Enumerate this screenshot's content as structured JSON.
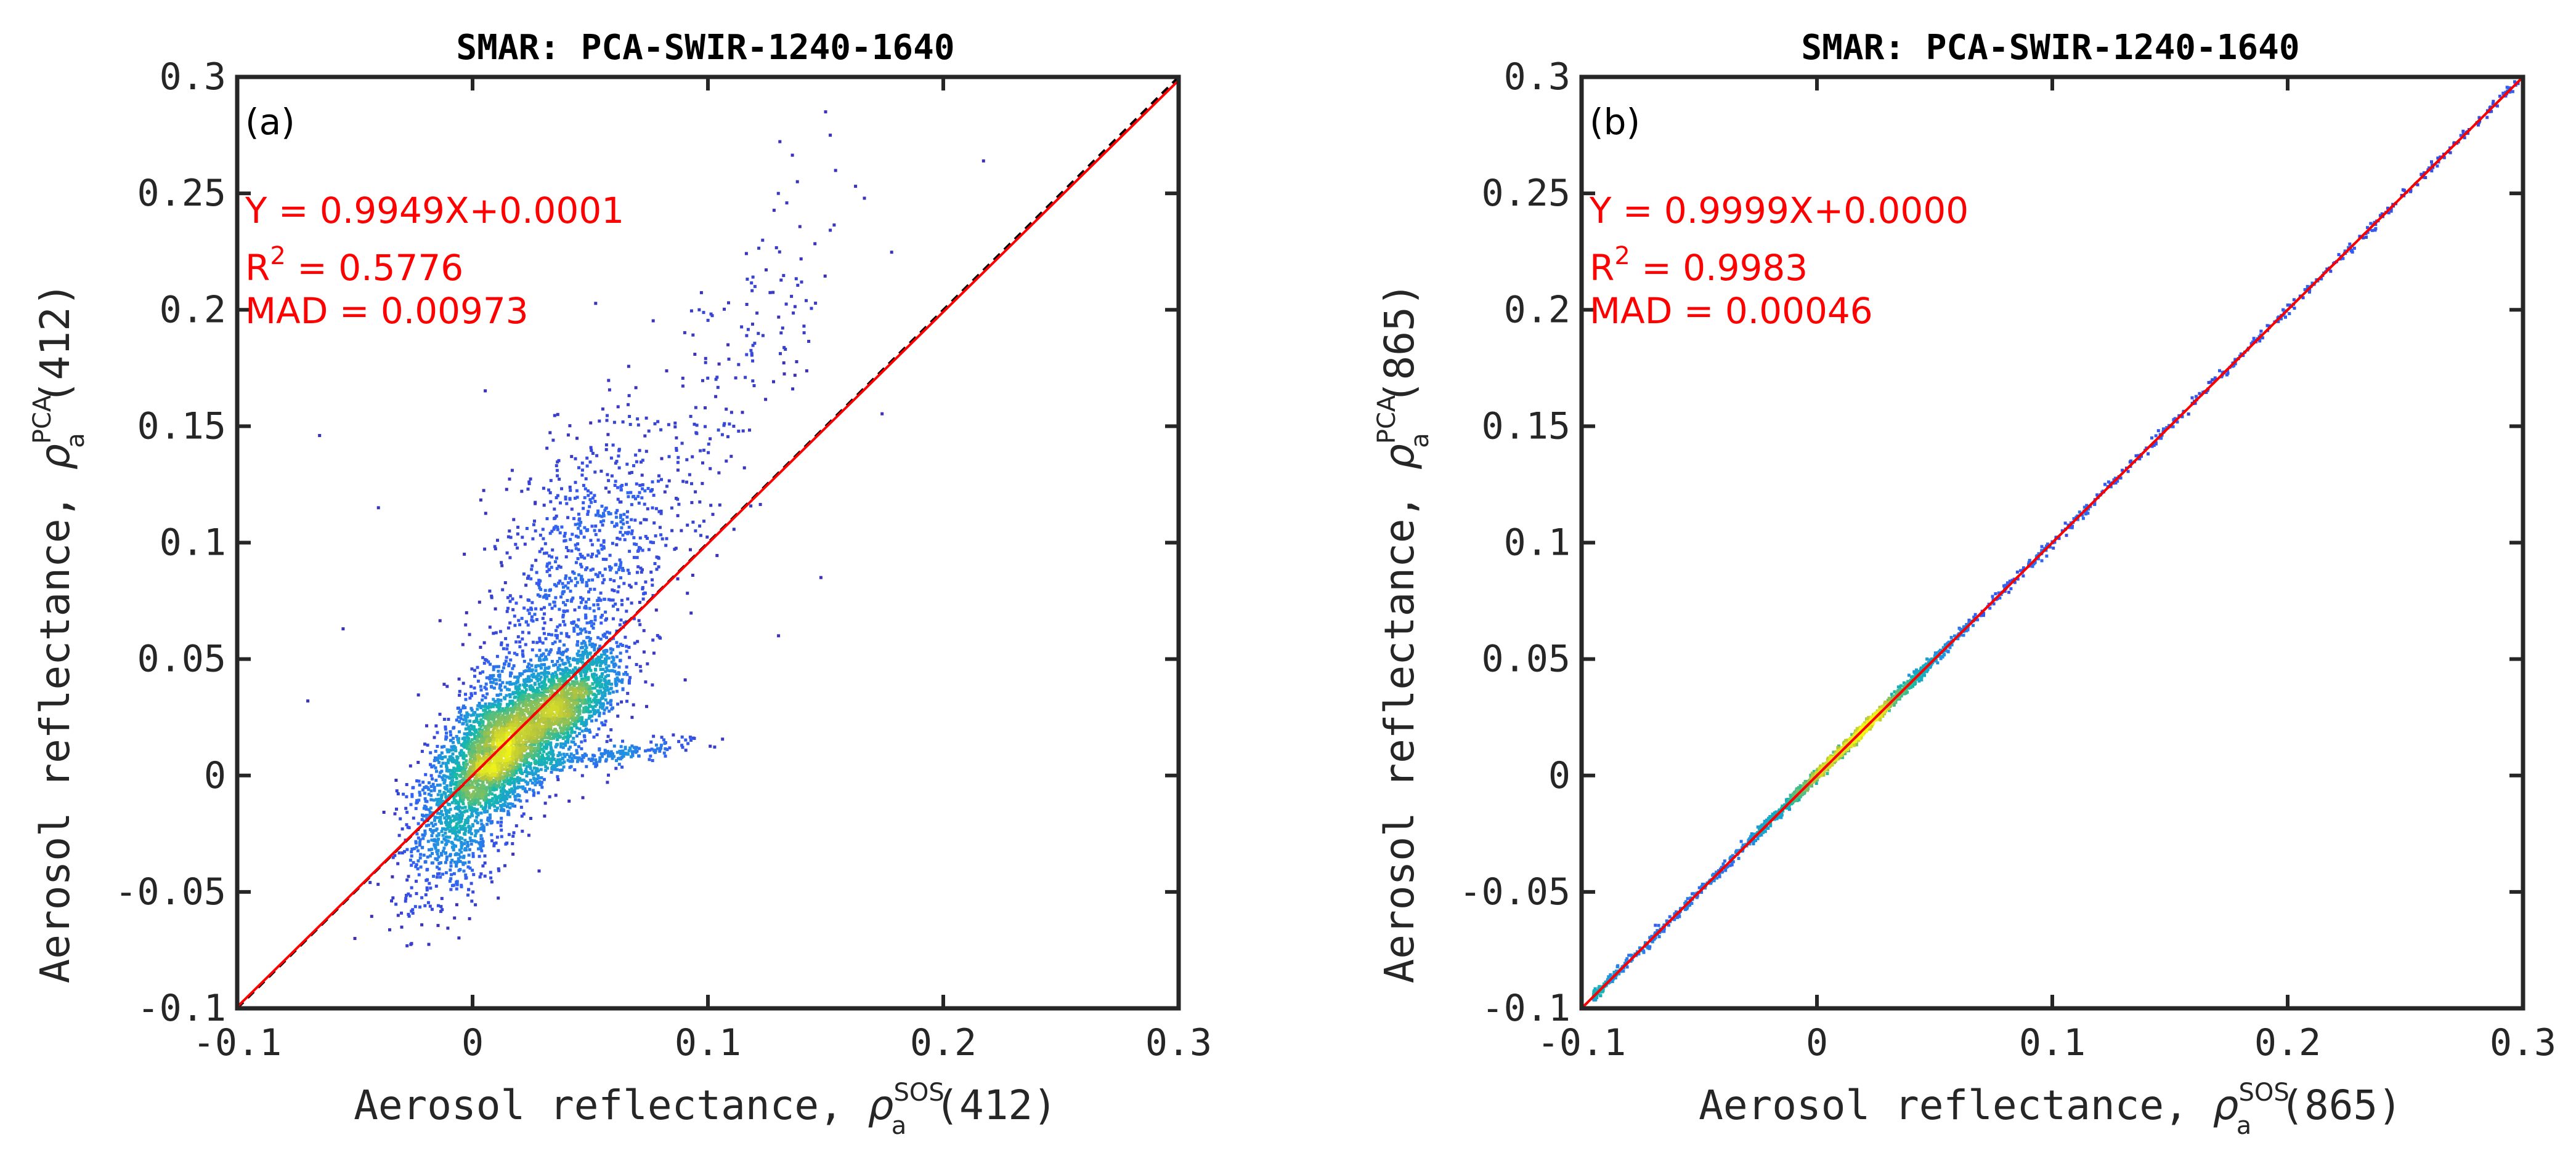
{
  "colors": {
    "fit_line": "#ff0000",
    "one_to_one": "#000000",
    "annotation": "#ff0000",
    "axes": "#262626"
  },
  "chart_data": [
    {
      "type": "scatter",
      "density_colored": true,
      "panel_label": "(a)",
      "title": "SMAR: PCA-SWIR-1240-1640",
      "xlabel": {
        "prefix": "Aerosol reflectance, ",
        "symbol": "ρ",
        "sub": "a",
        "sup": "SOS",
        "suffix": "(412)"
      },
      "ylabel": {
        "prefix": "Aerosol reflectance, ",
        "symbol": "ρ",
        "sub": "a",
        "sup": "PCA",
        "suffix": "(412)"
      },
      "xlim": [
        -0.1,
        0.3
      ],
      "ylim": [
        -0.1,
        0.3
      ],
      "xticks": [
        -0.1,
        0,
        0.1,
        0.2,
        0.3
      ],
      "xtick_labels": [
        "-0.1",
        "0",
        "0.1",
        "0.2",
        "0.3"
      ],
      "yticks": [
        -0.1,
        -0.05,
        0,
        0.05,
        0.1,
        0.15,
        0.2,
        0.25,
        0.3
      ],
      "ytick_labels": [
        "-0.1",
        "-0.05",
        "0",
        "0.05",
        "0.1",
        "0.15",
        "0.2",
        "0.25",
        "0.3"
      ],
      "fit": {
        "slope": 0.9949,
        "intercept": 0.0001,
        "equation": "Y = 0.9949X+0.0001",
        "r2_label": "R",
        "r2_exp": "2",
        "r2_value": " = 0.5776",
        "mad": "MAD = 0.00973"
      },
      "reference_line": "1:1",
      "clusters": [
        {
          "name": "core",
          "x": 0.01,
          "y": 0.01,
          "sx": 0.014,
          "sy": 0.018,
          "rho": 0.55,
          "count": 2600
        },
        {
          "name": "core-right",
          "x": 0.04,
          "y": 0.03,
          "sx": 0.012,
          "sy": 0.012,
          "rho": 0.6,
          "count": 1200
        },
        {
          "name": "upper-plume",
          "x": 0.045,
          "y": 0.085,
          "sx": 0.02,
          "sy": 0.035,
          "rho": 0.45,
          "count": 900
        },
        {
          "name": "negative-tail",
          "x": -0.01,
          "y": -0.03,
          "sx": 0.012,
          "sy": 0.016,
          "rho": 0.3,
          "count": 380
        },
        {
          "name": "high-branch",
          "x": 0.11,
          "y": 0.17,
          "sx": 0.025,
          "sy": 0.04,
          "rho": 0.7,
          "count": 170
        },
        {
          "name": "low-streak",
          "x": 0.055,
          "y": 0.008,
          "sx": 0.02,
          "sy": 0.004,
          "rho": 0.8,
          "count": 200
        }
      ],
      "outliers": [
        [
          -0.065,
          0.146
        ],
        [
          -0.04,
          0.115
        ],
        [
          -0.055,
          0.063
        ],
        [
          -0.07,
          0.032
        ],
        [
          -0.05,
          -0.07
        ],
        [
          0.148,
          0.085
        ],
        [
          0.15,
          0.285
        ],
        [
          0.152,
          0.275
        ],
        [
          0.138,
          0.255
        ],
        [
          0.12,
          0.21
        ],
        [
          0.13,
          0.06
        ]
      ]
    },
    {
      "type": "scatter",
      "density_colored": true,
      "panel_label": "(b)",
      "title": "SMAR: PCA-SWIR-1240-1640",
      "xlabel": {
        "prefix": "Aerosol reflectance, ",
        "symbol": "ρ",
        "sub": "a",
        "sup": "SOS",
        "suffix": "(865)"
      },
      "ylabel": {
        "prefix": "Aerosol reflectance, ",
        "symbol": "ρ",
        "sub": "a",
        "sup": "PCA",
        "suffix": "(865)"
      },
      "xlim": [
        -0.1,
        0.3
      ],
      "ylim": [
        -0.1,
        0.3
      ],
      "xticks": [
        -0.1,
        0,
        0.1,
        0.2,
        0.3
      ],
      "xtick_labels": [
        "-0.1",
        "0",
        "0.1",
        "0.2",
        "0.3"
      ],
      "yticks": [
        -0.1,
        -0.05,
        0,
        0.05,
        0.1,
        0.15,
        0.2,
        0.25,
        0.3
      ],
      "ytick_labels": [
        "-0.1",
        "-0.05",
        "0",
        "0.05",
        "0.1",
        "0.15",
        "0.2",
        "0.25",
        "0.3"
      ],
      "fit": {
        "slope": 0.9999,
        "intercept": 0.0,
        "equation": "Y = 0.9999X+0.0000",
        "r2_label": "R",
        "r2_exp": "2",
        "r2_value": " = 0.9983",
        "mad": "MAD = 0.00046"
      },
      "reference_line": "1:1",
      "diagonal_points": {
        "x_min": -0.095,
        "x_max": 0.3,
        "core_x": 0.015,
        "core_spread": 0.02,
        "scatter_sd": 0.0012
      }
    }
  ]
}
